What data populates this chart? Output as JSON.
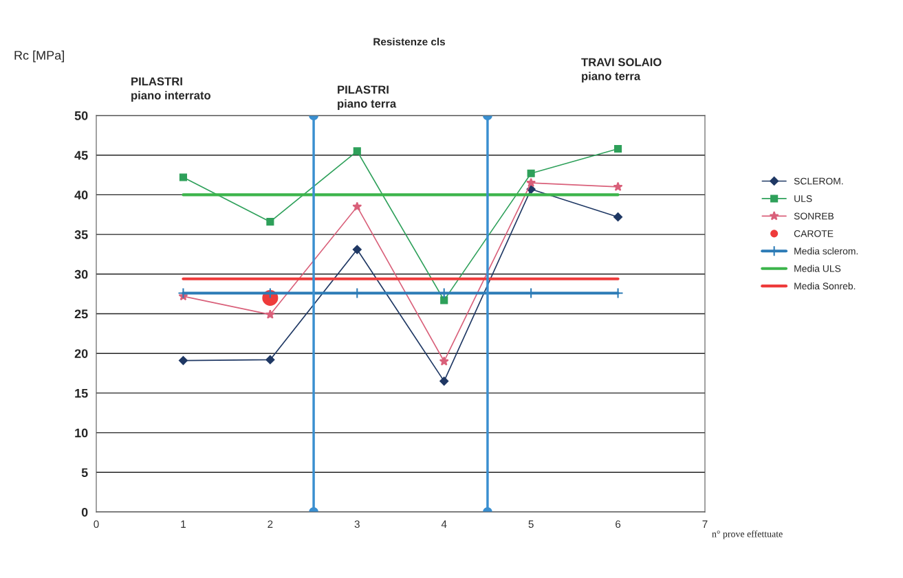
{
  "chart_data": {
    "type": "line",
    "title": "Resistenze cls",
    "ylabel": "Rc [MPa]",
    "xlabel": "n° prove effettuate",
    "x": [
      1,
      2,
      3,
      4,
      5,
      6
    ],
    "series": [
      {
        "name": "SCLEROM.",
        "color": "#1f3864",
        "marker": "diamond",
        "values": [
          19.1,
          19.2,
          33.1,
          16.5,
          40.7,
          37.2
        ]
      },
      {
        "name": "ULS",
        "color": "#2ea05a",
        "marker": "square",
        "values": [
          42.2,
          36.6,
          45.5,
          26.7,
          42.7,
          45.8
        ]
      },
      {
        "name": "SONREB",
        "color": "#d9607a",
        "marker": "star",
        "values": [
          27.2,
          24.9,
          38.5,
          19.0,
          41.5,
          41.0
        ]
      },
      {
        "name": "CAROTE",
        "type": "scatter",
        "color": "#ee3b3b",
        "marker": "circle",
        "x": [
          2
        ],
        "values": [
          27.0
        ]
      },
      {
        "name": "Media sclerom.",
        "color": "#2c7bb6",
        "marker": "cross",
        "values": [
          27.6,
          27.6,
          27.6,
          27.6,
          27.6,
          27.6
        ]
      },
      {
        "name": "Media ULS",
        "color": "#3cb44b",
        "marker": "none",
        "values": [
          40.0,
          40.0,
          40.0,
          40.0,
          40.0,
          40.0
        ]
      },
      {
        "name": "Media Sonreb.",
        "color": "#ee3b3b",
        "marker": "none",
        "values": [
          29.4,
          29.4,
          29.4,
          29.4,
          29.4,
          29.4
        ]
      },
      {
        "color": "#3a8fd0",
        "marker": "circle",
        "x": [
          2.5,
          2.5
        ],
        "values": [
          0,
          50
        ]
      },
      {
        "color": "#3a8fd0",
        "marker": "circle",
        "x": [
          4.5,
          4.5
        ],
        "values": [
          0,
          50
        ]
      }
    ],
    "xlim": [
      0,
      7
    ],
    "xticks": [
      0,
      1,
      2,
      3,
      4,
      5,
      6,
      7
    ],
    "ylim": [
      0,
      50
    ],
    "yticks": [
      0,
      5,
      10,
      15,
      20,
      25,
      30,
      35,
      40,
      45,
      50
    ],
    "grid": "y",
    "legend": "right",
    "annotations": [
      "PILASTRI\npiano interrato",
      "PILASTRI\npiano terra",
      "TRAVI SOLAIO\npiano terra"
    ]
  }
}
